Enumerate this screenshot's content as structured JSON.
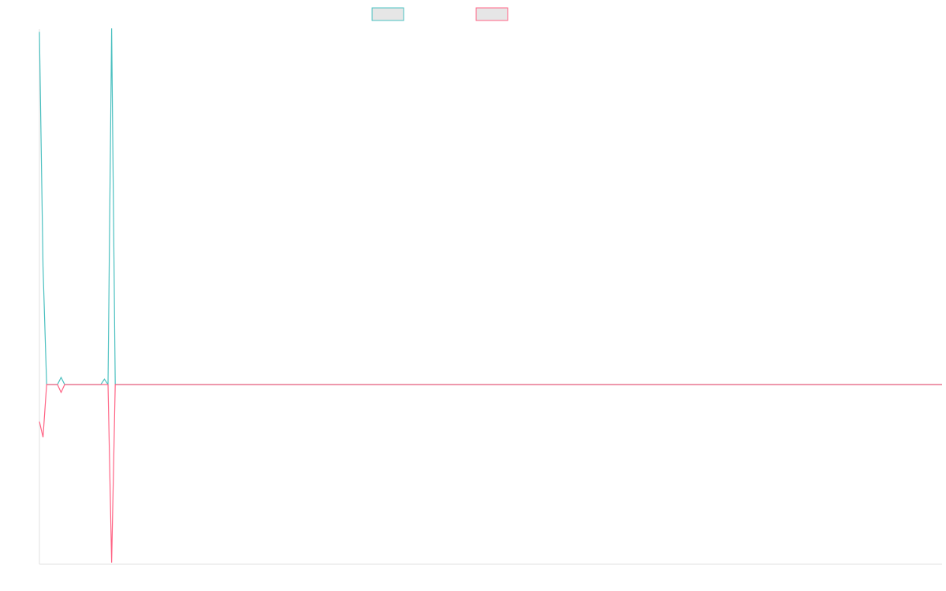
{
  "chart_data": {
    "type": "line",
    "x": [
      0,
      1,
      2,
      5,
      6,
      7,
      17,
      18,
      19,
      20,
      21,
      250
    ],
    "xlim": [
      0,
      250
    ],
    "ylim": [
      -0.5,
      1
    ],
    "grid": false,
    "legend": "top",
    "series": [
      {
        "color": "#4bc0c0",
        "values": [
          0.99,
          0.33,
          0,
          0,
          0.02,
          0,
          0,
          0.015,
          0,
          1,
          0,
          0
        ]
      },
      {
        "color": "#ff6384",
        "values": [
          -0.104,
          -0.148,
          0,
          0,
          -0.022,
          0,
          0,
          0,
          0,
          -0.5,
          0,
          0
        ]
      }
    ]
  }
}
